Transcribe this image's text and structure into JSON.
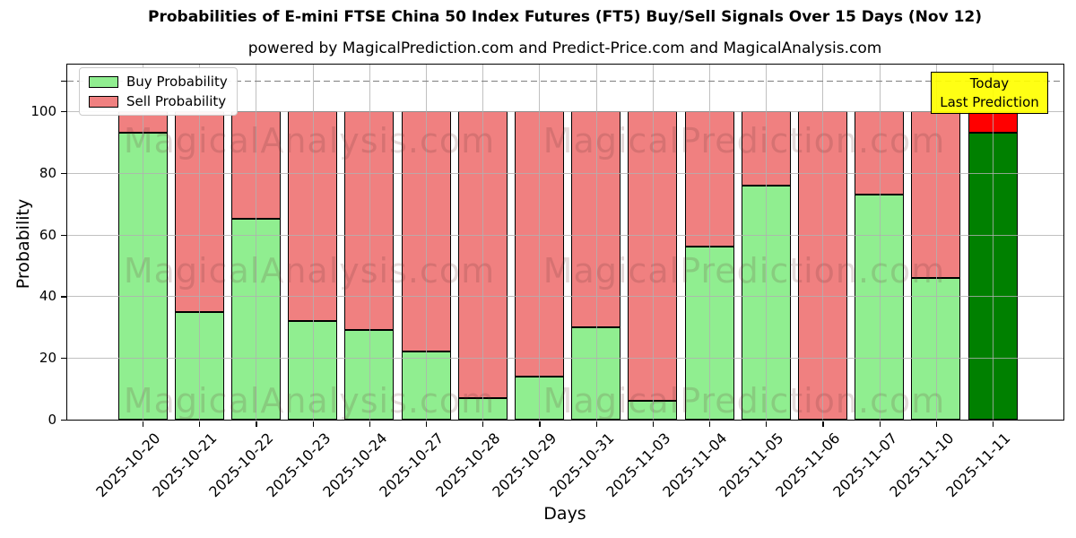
{
  "title": "Probabilities of E-mini FTSE China 50 Index Futures (FT5) Buy/Sell Signals Over 15 Days (Nov 12)",
  "subtitle": "powered by MagicalPrediction.com and Predict-Price.com and MagicalAnalysis.com",
  "annotation_box": {
    "line1": "Today",
    "line2": "Last Prediction"
  },
  "watermarks": {
    "left": "MagicalAnalysis.com",
    "right": "MagicalPrediction.com"
  },
  "colors": {
    "buy": "#90EE90",
    "sell": "#F08080",
    "today_buy": "#008000",
    "today_sell": "#FF0000",
    "annotation_bg": "#FFFF00",
    "grid": "#B0B0B0",
    "edge": "#000000"
  },
  "chart_data": {
    "type": "bar",
    "stacked": true,
    "title": "Probabilities of E-mini FTSE China 50 Index Futures (FT5) Buy/Sell Signals Over 15 Days (Nov 12)",
    "xlabel": "Days",
    "ylabel": "Probability",
    "ylim": [
      0,
      115
    ],
    "yticks": [
      0,
      20,
      40,
      60,
      80,
      100
    ],
    "dashed_guide_y": 110,
    "grid": true,
    "legend_position": "upper left",
    "categories": [
      "2025-10-20",
      "2025-10-21",
      "2025-10-22",
      "2025-10-23",
      "2025-10-24",
      "2025-10-27",
      "2025-10-28",
      "2025-10-29",
      "2025-10-31",
      "2025-11-03",
      "2025-11-04",
      "2025-11-05",
      "2025-11-06",
      "2025-11-07",
      "2025-11-10",
      "2025-11-11"
    ],
    "series": [
      {
        "name": "Buy Probability",
        "color": "#90EE90",
        "values": [
          93,
          35,
          65,
          32,
          29,
          22,
          7,
          14,
          30,
          6,
          56,
          76,
          0,
          73,
          46,
          93
        ]
      },
      {
        "name": "Sell Probability",
        "color": "#F08080",
        "values": [
          7,
          65,
          35,
          68,
          71,
          78,
          93,
          86,
          70,
          94,
          44,
          24,
          100,
          27,
          54,
          7
        ]
      }
    ],
    "highlight_last_bar": {
      "index": 15,
      "buy_color": "#008000",
      "sell_color": "#FF0000",
      "note": "Today Last Prediction"
    }
  }
}
